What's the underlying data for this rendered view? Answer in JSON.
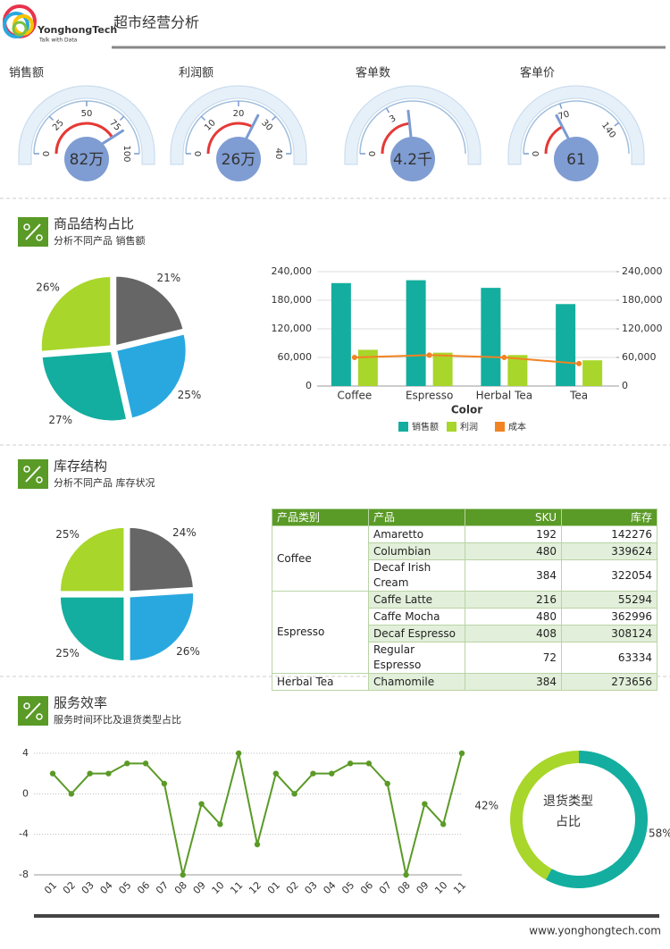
{
  "header": {
    "brand": "YonghongTech",
    "tagline": "Talk with Data",
    "title": "超市经营分析"
  },
  "sections": [
    {
      "title": "商品结构占比",
      "subtitle": "分析不同产品 销售额"
    },
    {
      "title": "库存结构",
      "subtitle": "分析不同产品 库存状况"
    },
    {
      "title": "服务效率",
      "subtitle": "服务时间环比及退货类型占比"
    }
  ],
  "chart_data": [
    {
      "type": "gauge",
      "title": "销售额",
      "value": 82,
      "value_label": "82万",
      "ylim": [
        0,
        100
      ],
      "yticks": [
        0,
        25,
        50,
        75,
        100
      ]
    },
    {
      "type": "gauge",
      "title": "利润额",
      "value": 26,
      "value_label": "26万",
      "ylim": [
        0,
        40
      ],
      "yticks": [
        0,
        10,
        20,
        30,
        40
      ]
    },
    {
      "type": "gauge",
      "title": "客单数",
      "value": 4.2,
      "value_label": "4.2千",
      "ylim": [
        0,
        9
      ],
      "yticks": [
        0,
        3
      ]
    },
    {
      "type": "gauge",
      "title": "客单价",
      "value": 61,
      "value_label": "61",
      "ylim": [
        0,
        175
      ],
      "yticks": [
        0,
        70,
        140
      ]
    },
    {
      "type": "pie",
      "values": [
        21,
        25,
        27,
        26
      ],
      "value_labels": [
        "21%",
        "25%",
        "27%",
        "26%"
      ],
      "colors": [
        "#666666",
        "#29a8e0",
        "#13ae9f",
        "#a8d62a"
      ]
    },
    {
      "type": "bar",
      "categories": [
        "Coffee",
        "Espresso",
        "Herbal Tea",
        "Tea"
      ],
      "xlabel": "Color",
      "series": [
        {
          "name": "销售额",
          "color": "#13ae9f",
          "values": [
            216000,
            222000,
            206000,
            172000
          ]
        },
        {
          "name": "利润",
          "color": "#a8d62a",
          "values": [
            76000,
            70000,
            65000,
            54000
          ]
        },
        {
          "name": "成本",
          "color": "#f28322",
          "type": "line",
          "axis": "y2",
          "values": [
            60000,
            65000,
            60000,
            47000
          ]
        }
      ],
      "ylim": [
        0,
        240000
      ],
      "yticks": [
        0,
        {
          "value": 60000,
          "label": "60,000"
        },
        {
          "value": 120000,
          "label": "120,000"
        },
        {
          "value": 180000,
          "label": "180,000"
        },
        {
          "value": 240000,
          "label": "240,000"
        }
      ],
      "y2lim": [
        0,
        240000
      ],
      "y2ticks": [
        0,
        {
          "value": 60000,
          "label": "60,000"
        },
        {
          "value": 120000,
          "label": "120,000"
        },
        {
          "value": 180000,
          "label": "180,000"
        },
        {
          "value": 240000,
          "label": "240,000"
        }
      ],
      "grid": true,
      "legend": "bottom"
    },
    {
      "type": "pie",
      "values": [
        24,
        26,
        25,
        25
      ],
      "value_labels": [
        "24%",
        "26%",
        "25%",
        "25%"
      ],
      "colors": [
        "#666666",
        "#29a8e0",
        "#13ae9f",
        "#a8d62a"
      ]
    },
    {
      "type": "line",
      "categories": [
        "01",
        "02",
        "03",
        "04",
        "05",
        "06",
        "07",
        "08",
        "09",
        "10",
        "11",
        "12",
        "01",
        "02",
        "03",
        "04",
        "05",
        "06",
        "07",
        "08",
        "09",
        "10",
        "11"
      ],
      "values": [
        2,
        0,
        2,
        2,
        3,
        3,
        1,
        -8,
        -1,
        -3,
        4,
        -5,
        2,
        0,
        2,
        2,
        3,
        3,
        1,
        -8,
        -1,
        -3,
        4
      ],
      "color": "#5a9a26",
      "ylim": [
        -8,
        4
      ],
      "yticks": [
        -8,
        -4,
        0,
        4
      ],
      "grid": true
    },
    {
      "type": "donut",
      "values": [
        58,
        42
      ],
      "value_labels": [
        "58%",
        "42%"
      ],
      "colors": [
        "#13ae9f",
        "#a8d62a"
      ],
      "center_label": [
        "退货类型",
        "占比"
      ]
    }
  ],
  "table": {
    "columns": [
      "产品类别",
      "产品",
      "SKU",
      "库存"
    ],
    "groups": [
      {
        "category": "Coffee",
        "rows": [
          [
            "Amaretto",
            192,
            142276
          ],
          [
            "Columbian",
            480,
            339624
          ],
          [
            "Decaf Irish Cream",
            384,
            322054
          ]
        ]
      },
      {
        "category": "Espresso",
        "rows": [
          [
            "Caffe Latte",
            216,
            55294
          ],
          [
            "Caffe Mocha",
            480,
            362996
          ],
          [
            "Decaf Espresso",
            408,
            308124
          ],
          [
            "Regular Espresso",
            72,
            63334
          ]
        ]
      },
      {
        "category": "Herbal Tea",
        "rows": [
          [
            "Chamomile",
            384,
            273656
          ]
        ]
      }
    ]
  },
  "footer": {
    "url": "www.yonghongtech.com"
  }
}
